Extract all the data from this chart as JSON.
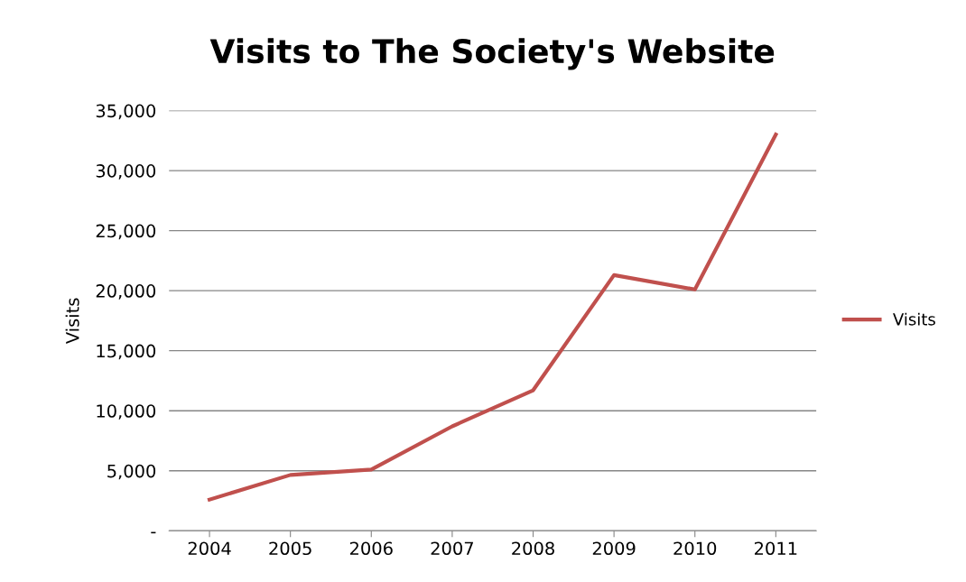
{
  "chart_data": {
    "type": "line",
    "title": "Visits to The Society's Website",
    "ylabel": "Visits",
    "categories": [
      "2004",
      "2005",
      "2006",
      "2007",
      "2008",
      "2009",
      "2010",
      "2011"
    ],
    "series": [
      {
        "name": "Visits",
        "color": "#c0504d",
        "values": [
          2600,
          4650,
          5100,
          8700,
          11700,
          21300,
          20100,
          33000
        ]
      }
    ],
    "ylim": [
      0,
      35000
    ],
    "yticks": [
      {
        "value": 0,
        "label": "-"
      },
      {
        "value": 5000,
        "label": "5,000"
      },
      {
        "value": 10000,
        "label": "10,000"
      },
      {
        "value": 15000,
        "label": "15,000"
      },
      {
        "value": 20000,
        "label": "20,000"
      },
      {
        "value": 25000,
        "label": "25,000"
      },
      {
        "value": 30000,
        "label": "30,000"
      },
      {
        "value": 35000,
        "label": "35,000"
      }
    ],
    "grid": "y",
    "legend": "right",
    "marker": "none",
    "line_style": "solid"
  }
}
